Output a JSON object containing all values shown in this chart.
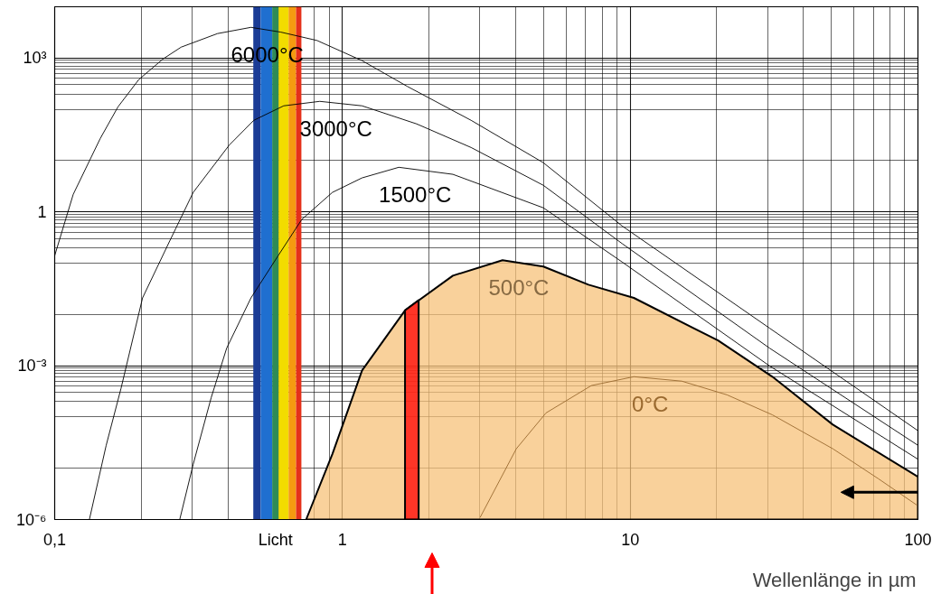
{
  "chart_data": {
    "type": "line",
    "xlabel": "Wellenlänge in µm",
    "log": "xy",
    "xlim": [
      0.1,
      100
    ],
    "ylim": [
      1e-06,
      10000
    ],
    "xticks": [
      {
        "value": 0.1,
        "label": "0,1"
      },
      1,
      10,
      100
    ],
    "yticks": [
      {
        "value": 1e-06,
        "label": "10⁻⁶"
      },
      {
        "value": 0.001,
        "label": "10⁻³"
      },
      1,
      {
        "value": 1000,
        "label": "10³"
      }
    ],
    "grid": true,
    "line_style": "solid",
    "bands": [
      {
        "axis": "x",
        "from": 0.49,
        "to": 0.52,
        "color": "#1b3c96"
      },
      {
        "axis": "x",
        "from": 0.52,
        "to": 0.57,
        "color": "#1f6fd0"
      },
      {
        "axis": "x",
        "from": 0.57,
        "to": 0.6,
        "color": "#2e8b57",
        "label": "Licht"
      },
      {
        "axis": "x",
        "from": 0.6,
        "to": 0.65,
        "color": "#f2dc00"
      },
      {
        "axis": "x",
        "from": 0.65,
        "to": 0.69,
        "color": "#f59a10"
      },
      {
        "axis": "x",
        "from": 0.69,
        "to": 0.72,
        "color": "#e5301a"
      }
    ],
    "series": [
      {
        "name": "6000°C",
        "color": "#000000",
        "x": [
          0.1,
          0.116,
          0.144,
          0.166,
          0.196,
          0.238,
          0.275,
          0.368,
          0.481,
          0.611,
          0.816,
          1.17,
          1.68,
          2.8,
          4.99,
          9.38,
          30.5,
          100
        ],
        "values": [
          0.14,
          2.2,
          27,
          112,
          380,
          960,
          1630,
          3000,
          3970,
          3200,
          2200,
          890,
          280,
          61,
          9.1,
          0.53,
          0.0054,
          5.4e-05
        ]
      },
      {
        "name": "3000°C",
        "color": "#000000",
        "x": [
          0.132,
          0.151,
          0.17,
          0.202,
          0.251,
          0.303,
          0.404,
          0.492,
          0.625,
          0.834,
          1.17,
          1.81,
          2.8,
          4.99,
          9.38,
          30.5,
          100
        ],
        "values": [
          1e-06,
          2.8e-05,
          0.00036,
          0.021,
          0.27,
          2.4,
          20,
          61,
          117,
          143,
          117,
          52,
          18,
          3.3,
          0.24,
          0.0022,
          2.8e-05
        ]
      },
      {
        "name": "1500°C",
        "color": "#000000",
        "x": [
          0.272,
          0.303,
          0.35,
          0.396,
          0.481,
          0.598,
          0.722,
          0.923,
          1.17,
          1.57,
          2.42,
          4.99,
          9.38,
          30.5,
          100
        ],
        "values": [
          1e-06,
          1.2e-05,
          0.00024,
          0.0022,
          0.021,
          0.14,
          0.71,
          2.4,
          4.6,
          7.4,
          5.4,
          1.2,
          0.105,
          0.00099,
          1.5e-05
        ]
      },
      {
        "name": "0°C",
        "color": "#9a6a30",
        "x": [
          3.01,
          4.02,
          5.1,
          7.33,
          10.3,
          15.1,
          21.7,
          31.2,
          50.6,
          72.7,
          99.3
        ],
        "values": [
          1.1e-06,
          2.4e-05,
          0.00012,
          0.00041,
          0.00061,
          0.0005,
          0.00027,
          0.00011,
          2.4e-05,
          6.3e-06,
          1.9e-06
        ]
      },
      {
        "name": "500°C",
        "type": "area",
        "color": "#f7c27a",
        "x": [
          0.748,
          0.923,
          1.17,
          1.65,
          2.42,
          3.6,
          4.99,
          7.16,
          10.3,
          20.2,
          31.2,
          50.6,
          100
        ],
        "values": [
          1e-06,
          1.9e-05,
          0.00081,
          0.012,
          0.057,
          0.114,
          0.086,
          0.038,
          0.021,
          0.0031,
          0.00061,
          7.1e-05,
          6.8e-06
        ]
      },
      {
        "type": "area",
        "color": "#ff0000",
        "x": [
          1.65,
          1.84
        ],
        "values": [
          0.012,
          0.019
        ]
      }
    ]
  }
}
